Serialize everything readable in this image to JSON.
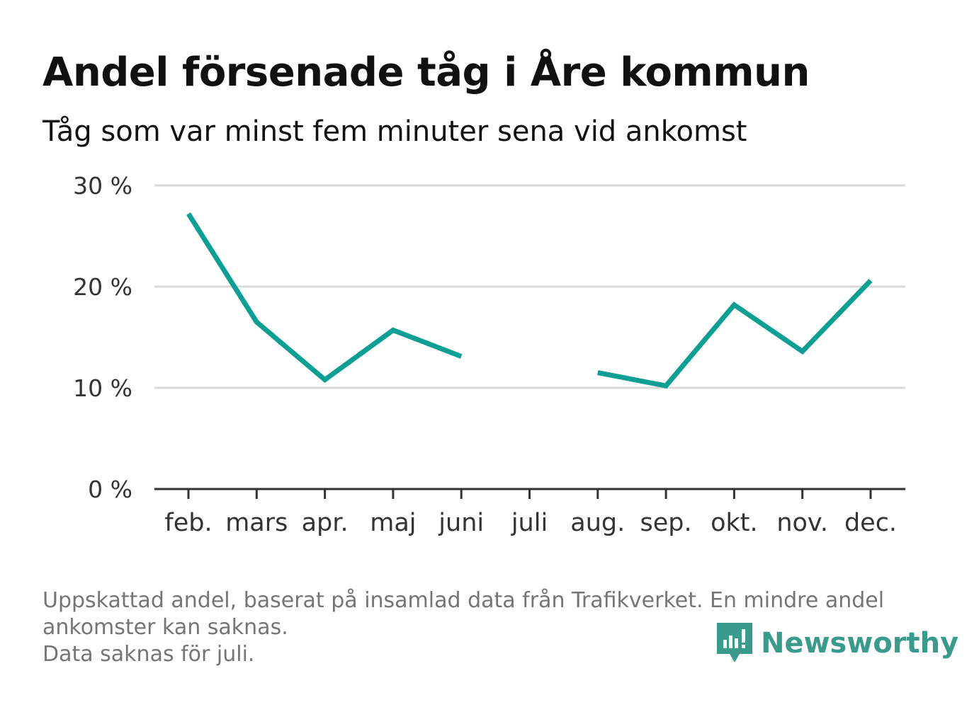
{
  "header": {
    "title": "Andel försenade tåg i Åre kommun",
    "subtitle": "Tåg som var minst fem minuter sena vid ankomst"
  },
  "footer": {
    "note_lines": [
      "Uppskattad andel, baserat på insamlad data från Trafikverket. En mindre andel",
      "ankomster kan saknas.",
      "Data saknas för juli."
    ],
    "brand": "Newsworthy",
    "brand_icon": "newsworthy-logo-icon"
  },
  "colors": {
    "line": "#0d9e94",
    "grid": "#d9d9d9",
    "axis": "#333333",
    "tick_label": "#333333",
    "brand": "#3a9a8c"
  },
  "chart_data": {
    "type": "line",
    "title": "Andel försenade tåg i Åre kommun",
    "subtitle": "Tåg som var minst fem minuter sena vid ankomst",
    "categories": [
      "feb.",
      "mars",
      "apr.",
      "maj",
      "juni",
      "juli",
      "aug.",
      "sep.",
      "okt.",
      "nov.",
      "dec."
    ],
    "series": [
      {
        "values": [
          27.2,
          16.5,
          10.8,
          15.7,
          13.1,
          null,
          11.5,
          10.2,
          18.2,
          13.6,
          20.6
        ]
      }
    ],
    "ylim": [
      0,
      30
    ],
    "yticks": [
      0,
      10,
      20,
      30
    ],
    "ytick_labels": [
      "0 %",
      "10 %",
      "20 %",
      "30 %"
    ],
    "xlabel": "",
    "ylabel": "",
    "grid": true,
    "legend": "none"
  }
}
